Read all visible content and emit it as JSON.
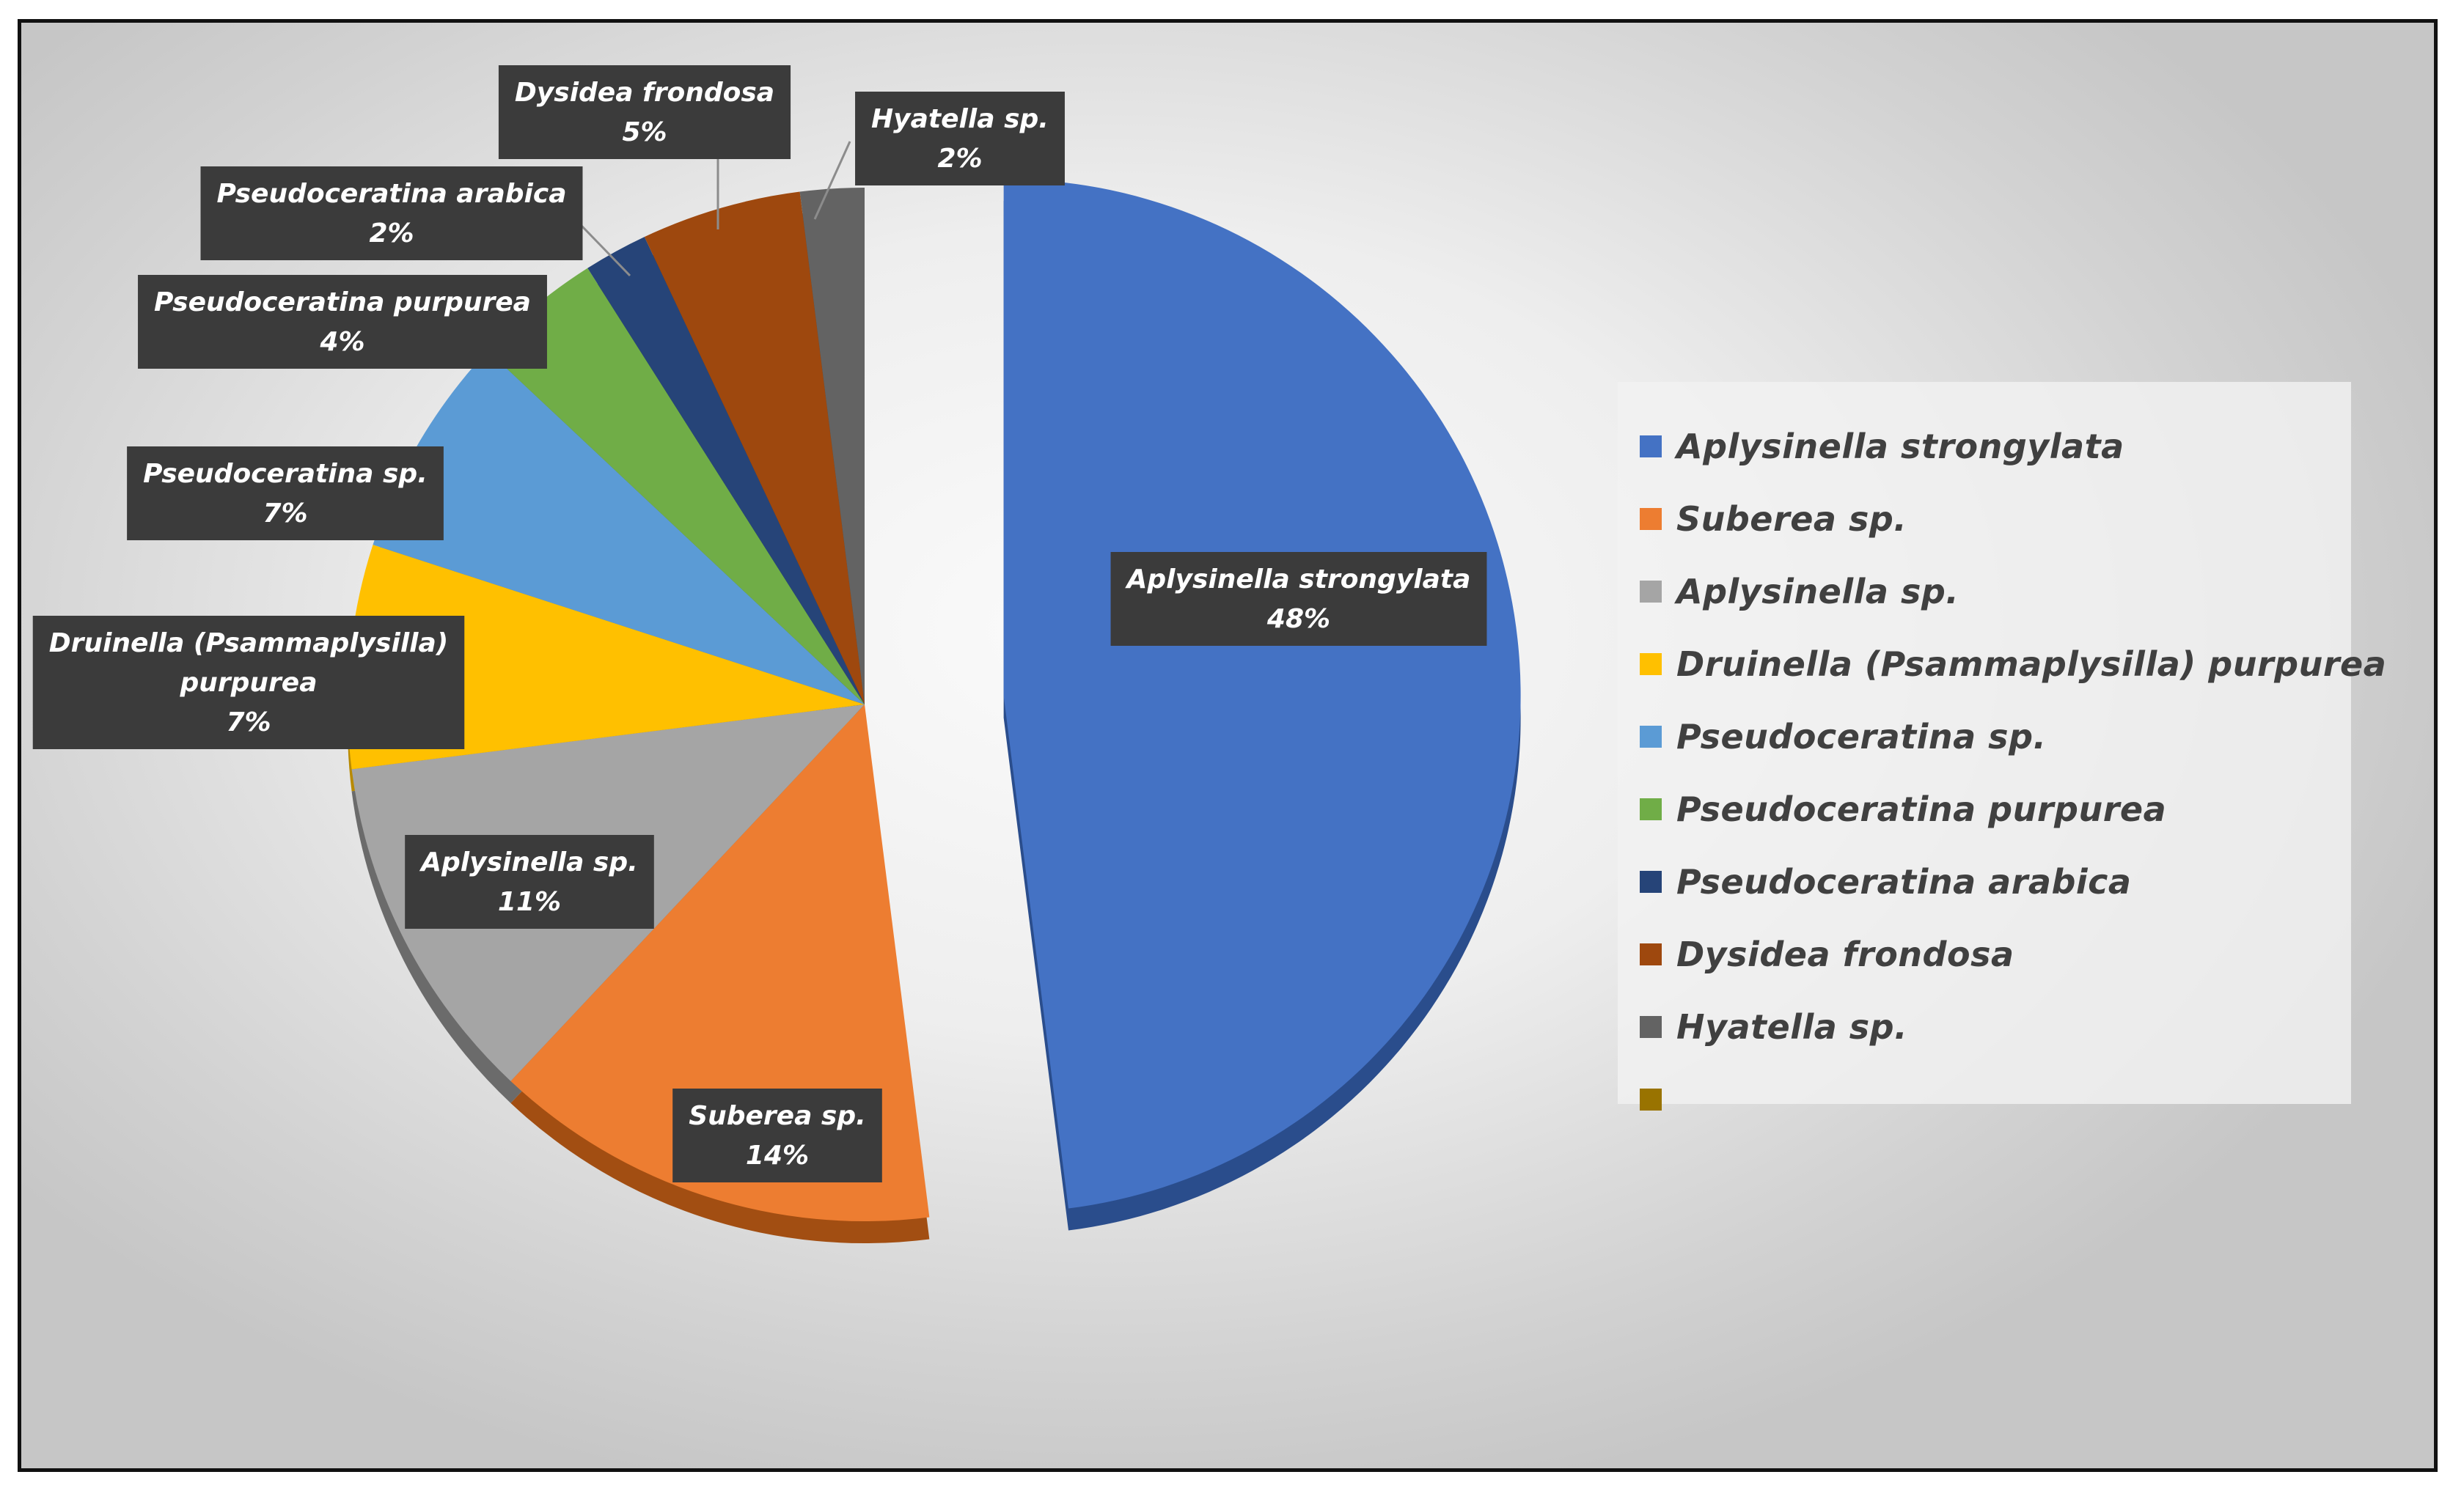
{
  "chart_data": {
    "type": "pie",
    "title": "",
    "legend_position": "right",
    "exploded_slice": "Aplysinella strongylata",
    "slices": [
      {
        "name": "Aplysinella strongylata",
        "value": 48,
        "label": "48%",
        "color": "#4472C4",
        "shadow_color": "#2a4d8c"
      },
      {
        "name": "Suberea sp.",
        "value": 14,
        "label": "14%",
        "color": "#ED7D31",
        "shadow_color": "#a24e12"
      },
      {
        "name": "Aplysinella sp.",
        "value": 11,
        "label": "11%",
        "color": "#A5A5A5",
        "shadow_color": "#6b6b6b"
      },
      {
        "name": "Druinella (Psammaplysilla) purpurea",
        "label_lines": [
          "Druinella (Psammaplysilla)",
          "purpurea"
        ],
        "value": 7,
        "label": "7%",
        "color": "#FFC000",
        "shadow_color": "#b88a00"
      },
      {
        "name": "Pseudoceratina sp.",
        "value": 7,
        "label": "7%",
        "color": "#5B9BD5",
        "shadow_color": "#38699a"
      },
      {
        "name": "Pseudoceratina purpurea",
        "value": 4,
        "label": "4%",
        "color": "#70AD47",
        "shadow_color": "#4a7a2b"
      },
      {
        "name": "Pseudoceratina arabica",
        "value": 2,
        "label": "2%",
        "color": "#264478",
        "shadow_color": "#16294a"
      },
      {
        "name": "Dysidea frondosa",
        "value": 5,
        "label": "5%",
        "color": "#9E480E",
        "shadow_color": "#652e08"
      },
      {
        "name": "Hyatella sp.",
        "value": 2,
        "label": "2%",
        "color": "#636363",
        "shadow_color": "#3e3e3e"
      }
    ],
    "legend": [
      {
        "label": "Aplysinella strongylata",
        "color": "#4472C4"
      },
      {
        "label": "Suberea sp.",
        "color": "#ED7D31"
      },
      {
        "label": "Aplysinella sp.",
        "color": "#A5A5A5"
      },
      {
        "label": "Druinella (Psammaplysilla) purpurea",
        "color": "#FFC000"
      },
      {
        "label": "Pseudoceratina sp.",
        "color": "#5B9BD5"
      },
      {
        "label": "Pseudoceratina purpurea",
        "color": "#70AD47"
      },
      {
        "label": "Pseudoceratina arabica",
        "color": "#264478"
      },
      {
        "label": "Dysidea frondosa",
        "color": "#9E480E"
      },
      {
        "label": "Hyatella sp.",
        "color": "#636363"
      },
      {
        "label": "",
        "color": "#997300"
      }
    ]
  }
}
